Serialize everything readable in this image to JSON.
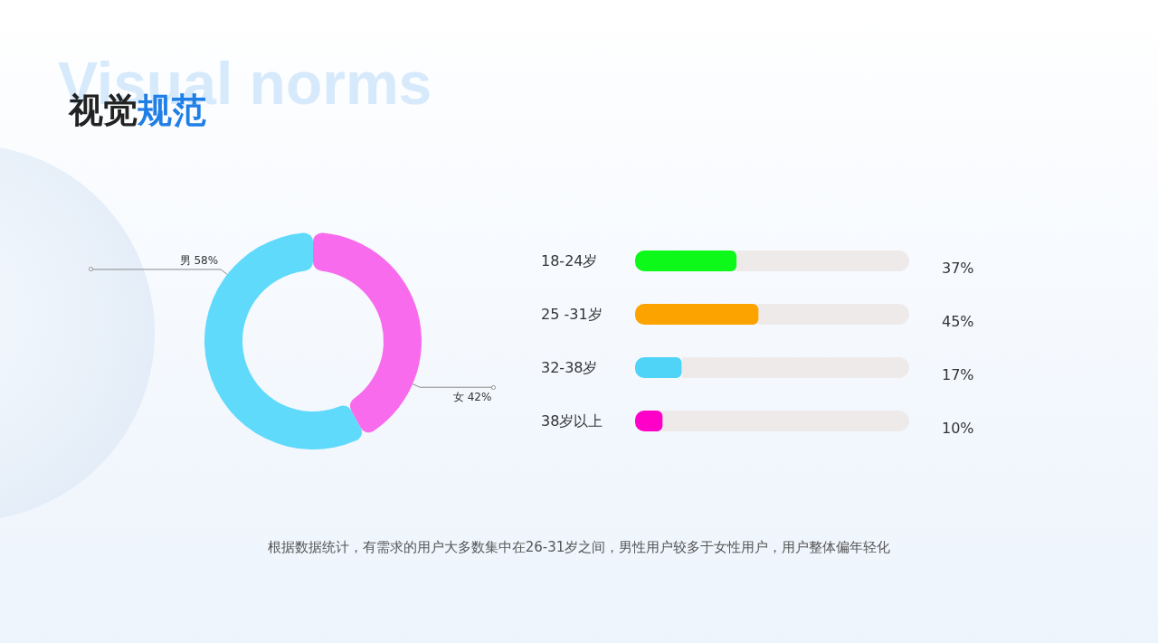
{
  "chart_data": [
    {
      "type": "donut",
      "title": "视觉规范",
      "subtitle": "Visual norms",
      "categories": [
        "男",
        "女"
      ],
      "values": [
        58,
        42
      ],
      "value_labels": [
        "58%",
        "42%"
      ],
      "colors": [
        "#5fdafb",
        "#f76bec"
      ]
    },
    {
      "type": "bar",
      "orientation": "horizontal",
      "categories": [
        "18-24岁",
        "25 -31岁",
        "32-38岁",
        "38岁以上"
      ],
      "values": [
        37,
        45,
        17,
        10
      ],
      "value_labels": [
        "37%",
        "45%",
        "17%",
        "10%"
      ],
      "colors": [
        "#0cf91a",
        "#fca300",
        "#4fd4f8",
        "#ff00c8"
      ],
      "xlim": [
        0,
        100
      ],
      "tick_labels": "y",
      "annotations": [
        "根据数据统计，有需求的用户大多数集中在26-31岁之间，男性用户较多于女性用户，用户整体偏年轻化"
      ]
    }
  ]
}
